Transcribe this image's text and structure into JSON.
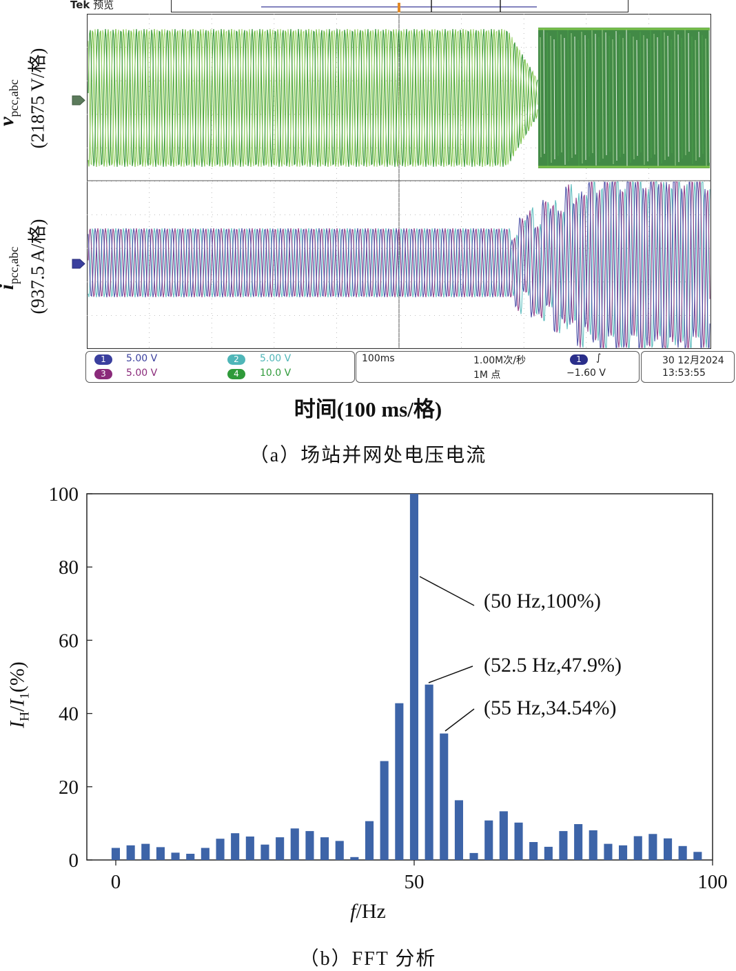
{
  "scope": {
    "brand": "Tek",
    "mode": "预览",
    "y_symbol_v": "v",
    "y_sub_v": "pcc,abc",
    "y_unit_v": "(21875 V/格)",
    "y_symbol_i": "i",
    "y_sub_i": "pcc,abc",
    "y_unit_i": "(937.5 A/格)",
    "channels": [
      {
        "num": "1",
        "value": "5.00 V",
        "color": "#3a3f9e"
      },
      {
        "num": "2",
        "value": "5.00 V",
        "color": "#4fb6b8"
      },
      {
        "num": "3",
        "value": "5.00 V",
        "color": "#8a2a7a"
      },
      {
        "num": "4",
        "value": "10.0 V",
        "color": "#2f9a3a"
      }
    ],
    "timebase": "100ms",
    "sample_rate": "1.00M次/秒",
    "record_length": "1M 点",
    "trigger_channel": "1",
    "trigger_symbol": "∫",
    "trigger_level": "−1.60 V",
    "date": "30 12月2024",
    "time": "13:53:55",
    "x_label": "时间(100 ms/格)",
    "caption": "（a）场站并网处电压电流"
  },
  "chart_data": {
    "type": "bar",
    "title": "",
    "xlabel": "f/Hz",
    "ylabel": "I_H/I_1(%)",
    "xlim": [
      -2.5,
      100
    ],
    "ylim": [
      0,
      100
    ],
    "xticks": [
      0,
      50,
      100
    ],
    "yticks": [
      0,
      20,
      40,
      60,
      80,
      100
    ],
    "bar_width_hz": 1.4,
    "x": [
      0,
      2.5,
      5,
      7.5,
      10,
      12.5,
      15,
      17.5,
      20,
      22.5,
      25,
      27.5,
      30,
      32.5,
      35,
      37.5,
      40,
      42.5,
      45,
      47.5,
      50,
      52.5,
      55,
      57.5,
      60,
      62.5,
      65,
      67.5,
      70,
      72.5,
      75,
      77.5,
      80,
      82.5,
      85,
      87.5,
      90,
      92.5,
      95,
      97.5
    ],
    "values": [
      3.3,
      4.0,
      4.4,
      3.5,
      2.0,
      1.7,
      3.3,
      5.8,
      7.3,
      6.4,
      4.2,
      6.2,
      8.6,
      7.9,
      6.2,
      5.2,
      0.8,
      10.6,
      27.0,
      42.8,
      100,
      47.9,
      34.54,
      16.3,
      1.9,
      10.8,
      13.3,
      10.2,
      4.9,
      3.6,
      7.9,
      9.8,
      8.1,
      4.4,
      4.0,
      6.5,
      7.1,
      5.9,
      3.8,
      2.2
    ],
    "annotations": [
      {
        "label": "(50 Hz,100%)",
        "x": 50,
        "y": 100
      },
      {
        "label": "(52.5 Hz,47.9%)",
        "x": 52.5,
        "y": 47.9
      },
      {
        "label": "(55 Hz,34.54%)",
        "x": 55,
        "y": 34.54
      }
    ],
    "bar_color": "#3d64a8",
    "caption": "（b）FFT 分析"
  }
}
